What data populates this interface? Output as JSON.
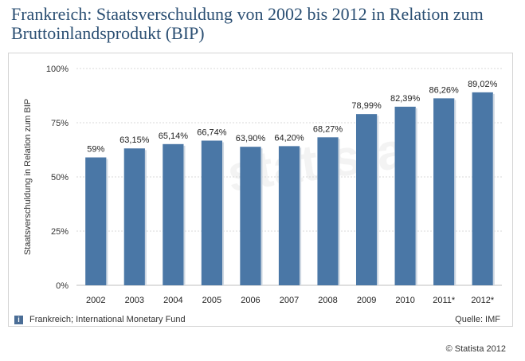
{
  "title": "Frankreich: Staatsverschuldung von 2002 bis 2012 in Relation zum Bruttoinlandsprodukt (BIP)",
  "watermark": "statista",
  "footer": {
    "info_icon": "i",
    "source_note": "Frankreich; International Monetary Fund",
    "source": "Quelle: IMF",
    "copyright": "© Statista 2012"
  },
  "colors": {
    "bar": "#4a77a6",
    "title": "#2b4f73",
    "grid": "#d9d9d9"
  },
  "chart_data": {
    "type": "bar",
    "title": "Frankreich: Staatsverschuldung von 2002 bis 2012 in Relation zum Bruttoinlandsprodukt (BIP)",
    "xlabel": "",
    "ylabel": "Staatsverschuldung in Relation zum BIP",
    "ylim": [
      0,
      100
    ],
    "yticks": [
      0,
      25,
      50,
      75,
      100
    ],
    "ytick_labels": [
      "0%",
      "25%",
      "50%",
      "75%",
      "100%"
    ],
    "grid": true,
    "categories": [
      "2002",
      "2003",
      "2004",
      "2005",
      "2006",
      "2007",
      "2008",
      "2009",
      "2010",
      "2011*",
      "2012*"
    ],
    "values": [
      59,
      63.15,
      65.14,
      66.74,
      63.9,
      64.2,
      68.27,
      78.99,
      82.39,
      86.26,
      89.02
    ],
    "value_labels": [
      "59%",
      "63,15%",
      "65,14%",
      "66,74%",
      "63,90%",
      "64,20%",
      "68,27%",
      "78,99%",
      "82,39%",
      "86,26%",
      "89,02%"
    ]
  }
}
